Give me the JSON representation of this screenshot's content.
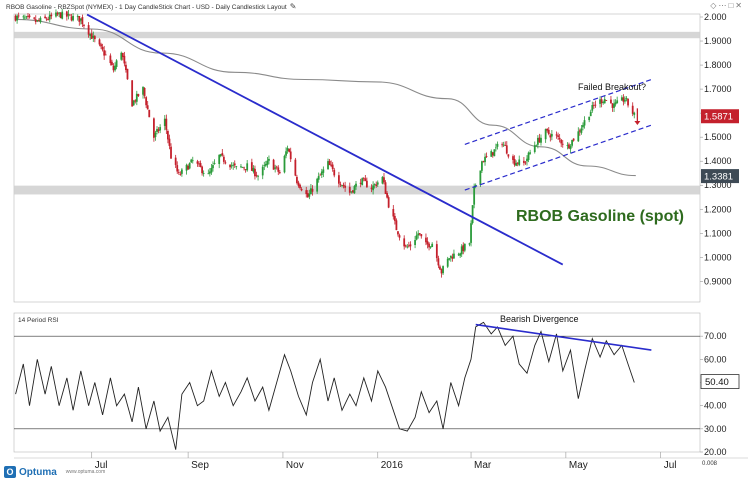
{
  "header": {
    "title": "RBOB Gasoline - RBZSpot (NYMEX) - 1 Day CandleStick Chart - USD - Daily Candlestick Layout",
    "edit_icon": "pencil-icon",
    "window_icons": [
      "diamond-icon",
      "more-icon",
      "maximize-icon",
      "close-icon"
    ]
  },
  "brand": {
    "name": "Optuma",
    "url": "www.optuma.com"
  },
  "colors": {
    "up": "#2a9b3a",
    "down": "#c4202c",
    "trend": "#2a2ccc",
    "ma": "#8a8a8a",
    "annotation_title": "#2e6b1e",
    "price_box": "#c4202c",
    "ma_box": "#3e4a55"
  },
  "chart_data": [
    {
      "type": "candlestick",
      "annotation_title": "RBOB Gasoline (spot)",
      "annotations": [
        "Failed Breakout?"
      ],
      "y_ticks": [
        "2.000",
        "1.9000",
        "1.8000",
        "1.7000",
        "1.6000",
        "1.5000",
        "1.4000",
        "1.3000",
        "1.2000",
        "1.1000",
        "1.0000",
        "0.9000"
      ],
      "ylim": [
        0.86,
        2.0
      ],
      "x_ticks": [
        {
          "label": "Jul",
          "date": "2015-07-01"
        },
        {
          "label": "Sep",
          "date": "2015-09-01"
        },
        {
          "label": "Nov",
          "date": "2015-11-01"
        },
        {
          "label": "2016",
          "date": "2016-01-01"
        },
        {
          "label": "Mar",
          "date": "2016-03-01"
        },
        {
          "label": "May",
          "date": "2016-05-01"
        },
        {
          "label": "Jul",
          "date": "2016-07-01"
        }
      ],
      "xlim": [
        "2015-05-12",
        "2016-07-25"
      ],
      "close_series": [
        [
          "2015-05-13",
          2.0
        ],
        [
          "2015-05-27",
          1.98
        ],
        [
          "2015-06-10",
          2.01
        ],
        [
          "2015-06-24",
          1.99
        ],
        [
          "2015-07-03",
          1.9
        ],
        [
          "2015-07-10",
          1.84
        ],
        [
          "2015-07-15",
          1.78
        ],
        [
          "2015-07-20",
          1.86
        ],
        [
          "2015-07-27",
          1.64
        ],
        [
          "2015-08-03",
          1.7
        ],
        [
          "2015-08-10",
          1.5
        ],
        [
          "2015-08-17",
          1.57
        ],
        [
          "2015-08-21",
          1.42
        ],
        [
          "2015-08-26",
          1.34
        ],
        [
          "2015-09-04",
          1.4
        ],
        [
          "2015-09-14",
          1.34
        ],
        [
          "2015-09-21",
          1.42
        ],
        [
          "2015-10-02",
          1.37
        ],
        [
          "2015-10-09",
          1.38
        ],
        [
          "2015-10-16",
          1.34
        ],
        [
          "2015-10-23",
          1.4
        ],
        [
          "2015-10-30",
          1.35
        ],
        [
          "2015-11-04",
          1.46
        ],
        [
          "2015-11-10",
          1.32
        ],
        [
          "2015-11-17",
          1.25
        ],
        [
          "2015-11-23",
          1.32
        ],
        [
          "2015-11-30",
          1.39
        ],
        [
          "2015-12-07",
          1.32
        ],
        [
          "2015-12-14",
          1.27
        ],
        [
          "2015-12-21",
          1.32
        ],
        [
          "2015-12-28",
          1.29
        ],
        [
          "2016-01-04",
          1.33
        ],
        [
          "2016-01-08",
          1.22
        ],
        [
          "2016-01-13",
          1.12
        ],
        [
          "2016-01-19",
          1.04
        ],
        [
          "2016-01-22",
          1.05
        ],
        [
          "2016-01-27",
          1.1
        ],
        [
          "2016-02-01",
          1.05
        ],
        [
          "2016-02-05",
          1.06
        ],
        [
          "2016-02-11",
          0.94
        ],
        [
          "2016-02-16",
          1.0
        ],
        [
          "2016-02-22",
          1.02
        ],
        [
          "2016-02-29",
          1.06
        ],
        [
          "2016-03-03",
          1.28
        ],
        [
          "2016-03-08",
          1.4
        ],
        [
          "2016-03-14",
          1.43
        ],
        [
          "2016-03-21",
          1.48
        ],
        [
          "2016-03-28",
          1.4
        ],
        [
          "2016-04-04",
          1.39
        ],
        [
          "2016-04-11",
          1.47
        ],
        [
          "2016-04-18",
          1.52
        ],
        [
          "2016-04-25",
          1.5
        ],
        [
          "2016-05-02",
          1.46
        ],
        [
          "2016-05-09",
          1.52
        ],
        [
          "2016-05-16",
          1.6
        ],
        [
          "2016-05-20",
          1.64
        ],
        [
          "2016-05-26",
          1.66
        ],
        [
          "2016-06-01",
          1.63
        ],
        [
          "2016-06-08",
          1.66
        ],
        [
          "2016-06-14",
          1.59
        ]
      ],
      "moving_average": [
        [
          "2015-05-13",
          1.99
        ],
        [
          "2015-07-01",
          1.95
        ],
        [
          "2015-08-15",
          1.85
        ],
        [
          "2015-10-01",
          1.77
        ],
        [
          "2015-11-15",
          1.74
        ],
        [
          "2015-12-31",
          1.73
        ],
        [
          "2016-02-15",
          1.66
        ],
        [
          "2016-03-15",
          1.55
        ],
        [
          "2016-04-15",
          1.46
        ],
        [
          "2016-05-15",
          1.38
        ],
        [
          "2016-06-15",
          1.34
        ]
      ],
      "lines": [
        {
          "name": "downtrend",
          "x": [
            "2015-06-28",
            "2016-04-29"
          ],
          "y": [
            2.01,
            0.97
          ]
        },
        {
          "name": "channel-upper",
          "x": [
            "2016-02-26",
            "2016-06-25"
          ],
          "y": [
            1.47,
            1.74
          ]
        },
        {
          "name": "channel-lower",
          "x": [
            "2016-02-26",
            "2016-06-25"
          ],
          "y": [
            1.28,
            1.55
          ]
        },
        {
          "name": "resistance-band",
          "y_range": [
            1.92,
            1.93
          ]
        },
        {
          "name": "support-band",
          "y_range": [
            1.27,
            1.29
          ]
        }
      ],
      "price_box": "1.5871",
      "ma_box": "1.3381"
    },
    {
      "type": "line",
      "label": "14 Period RSI",
      "annotations": [
        "Bearish Divergence"
      ],
      "y_ticks": [
        "70.00",
        "60.00",
        "50.00",
        "40.00",
        "30.00",
        "20.00"
      ],
      "ylim": [
        20,
        80
      ],
      "levels": [
        70,
        30
      ],
      "rsi": [
        [
          "2015-05-13",
          45
        ],
        [
          "2015-05-18",
          58
        ],
        [
          "2015-05-22",
          40
        ],
        [
          "2015-05-27",
          60
        ],
        [
          "2015-06-01",
          45
        ],
        [
          "2015-06-05",
          57
        ],
        [
          "2015-06-10",
          40
        ],
        [
          "2015-06-15",
          52
        ],
        [
          "2015-06-19",
          38
        ],
        [
          "2015-06-24",
          55
        ],
        [
          "2015-06-29",
          40
        ],
        [
          "2015-07-03",
          50
        ],
        [
          "2015-07-08",
          36
        ],
        [
          "2015-07-13",
          52
        ],
        [
          "2015-07-17",
          40
        ],
        [
          "2015-07-22",
          45
        ],
        [
          "2015-07-27",
          33
        ],
        [
          "2015-07-31",
          48
        ],
        [
          "2015-08-05",
          30
        ],
        [
          "2015-08-10",
          42
        ],
        [
          "2015-08-14",
          29
        ],
        [
          "2015-08-19",
          35
        ],
        [
          "2015-08-24",
          21
        ],
        [
          "2015-08-28",
          45
        ],
        [
          "2015-09-02",
          50
        ],
        [
          "2015-09-07",
          40
        ],
        [
          "2015-09-11",
          42
        ],
        [
          "2015-09-16",
          55
        ],
        [
          "2015-09-21",
          44
        ],
        [
          "2015-09-25",
          50
        ],
        [
          "2015-09-30",
          40
        ],
        [
          "2015-10-05",
          46
        ],
        [
          "2015-10-09",
          52
        ],
        [
          "2015-10-14",
          42
        ],
        [
          "2015-10-19",
          48
        ],
        [
          "2015-10-23",
          38
        ],
        [
          "2015-10-28",
          50
        ],
        [
          "2015-11-02",
          62
        ],
        [
          "2015-11-06",
          55
        ],
        [
          "2015-11-11",
          44
        ],
        [
          "2015-11-16",
          36
        ],
        [
          "2015-11-20",
          50
        ],
        [
          "2015-11-25",
          60
        ],
        [
          "2015-11-30",
          42
        ],
        [
          "2015-12-04",
          52
        ],
        [
          "2015-12-09",
          38
        ],
        [
          "2015-12-14",
          45
        ],
        [
          "2015-12-18",
          40
        ],
        [
          "2015-12-23",
          52
        ],
        [
          "2015-12-28",
          42
        ],
        [
          "2016-01-01",
          55
        ],
        [
          "2016-01-06",
          48
        ],
        [
          "2016-01-11",
          38
        ],
        [
          "2016-01-15",
          30
        ],
        [
          "2016-01-20",
          29
        ],
        [
          "2016-01-25",
          35
        ],
        [
          "2016-01-29",
          46
        ],
        [
          "2016-02-03",
          37
        ],
        [
          "2016-02-08",
          42
        ],
        [
          "2016-02-12",
          30
        ],
        [
          "2016-02-17",
          50
        ],
        [
          "2016-02-22",
          40
        ],
        [
          "2016-02-26",
          52
        ],
        [
          "2016-03-01",
          60
        ],
        [
          "2016-03-04",
          74
        ],
        [
          "2016-03-09",
          76
        ],
        [
          "2016-03-14",
          71
        ],
        [
          "2016-03-18",
          74
        ],
        [
          "2016-03-23",
          66
        ],
        [
          "2016-03-28",
          70
        ],
        [
          "2016-04-01",
          58
        ],
        [
          "2016-04-06",
          54
        ],
        [
          "2016-04-11",
          66
        ],
        [
          "2016-04-15",
          72
        ],
        [
          "2016-04-20",
          59
        ],
        [
          "2016-04-25",
          71
        ],
        [
          "2016-04-29",
          55
        ],
        [
          "2016-05-04",
          64
        ],
        [
          "2016-05-09",
          43
        ],
        [
          "2016-05-13",
          55
        ],
        [
          "2016-05-18",
          69
        ],
        [
          "2016-05-23",
          61
        ],
        [
          "2016-05-27",
          68
        ],
        [
          "2016-06-01",
          62
        ],
        [
          "2016-06-06",
          66
        ],
        [
          "2016-06-10",
          58
        ],
        [
          "2016-06-14",
          50
        ]
      ],
      "lines": [
        {
          "name": "divergence-line",
          "x": [
            "2016-03-04",
            "2016-06-25"
          ],
          "y": [
            75,
            64
          ]
        }
      ],
      "value_box": "50.40",
      "corner_value": "0.008"
    }
  ]
}
